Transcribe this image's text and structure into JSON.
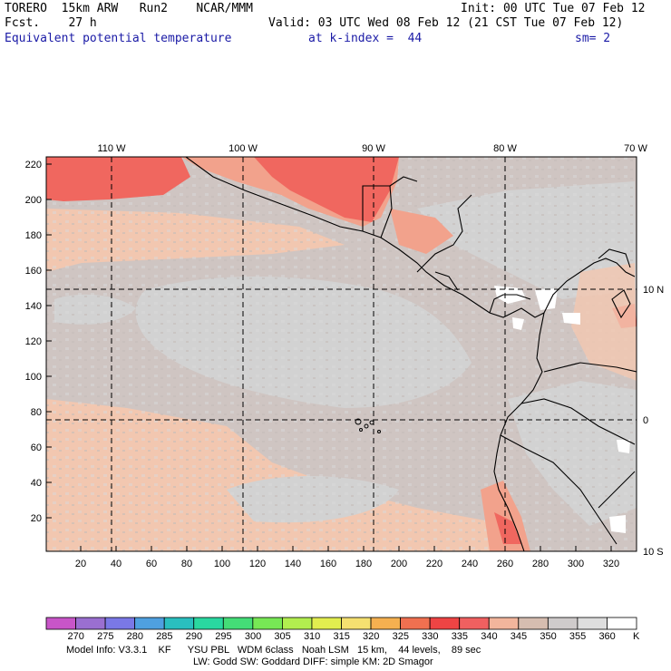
{
  "header": {
    "line1_left": "TORERO  15km ARW   Run2    NCAR/MMM",
    "line1_right": "Init: 00 UTC Tue 07 Feb 12",
    "line2_left": "Fcst.    27 h",
    "line2_right": "Valid: 03 UTC Wed 08 Feb 12 (21 CST Tue 07 Feb 12)",
    "line3_left": "Equivalent potential temperature",
    "line3_mid": "at k-index =  44",
    "line3_right": "sm= 2"
  },
  "map": {
    "lon_labels": [
      "110 W",
      "100 W",
      "90 W",
      "80 W",
      "70 W"
    ],
    "lat_labels": [
      "10 N",
      "0",
      "10 S"
    ],
    "y_ticks": [
      "220",
      "200",
      "180",
      "160",
      "140",
      "120",
      "100",
      "80",
      "60",
      "40",
      "20"
    ],
    "x_ticks": [
      "20",
      "40",
      "60",
      "80",
      "100",
      "120",
      "140",
      "160",
      "180",
      "200",
      "220",
      "240",
      "260",
      "280",
      "300",
      "320"
    ]
  },
  "colorbar": {
    "labels": [
      "270",
      "275",
      "280",
      "285",
      "290",
      "295",
      "300",
      "305",
      "310",
      "315",
      "320",
      "325",
      "330",
      "335",
      "340",
      "345",
      "350",
      "355",
      "360"
    ],
    "unit": "K",
    "colors": [
      "#c855c8",
      "#9a6fd0",
      "#7a78e6",
      "#4fa0e0",
      "#2abfbf",
      "#2ad8a0",
      "#44dd77",
      "#77e855",
      "#b2ee4f",
      "#e2ee4f",
      "#f5e070",
      "#f5b050",
      "#f07050",
      "#ee4444",
      "#f06060",
      "#f2b59c",
      "#d6bdb0",
      "#cfcbcb",
      "#dedede",
      "#ffffff"
    ]
  },
  "footer": {
    "line1": "Model Info: V3.3.1    KF      YSU PBL   WDM 6class   Noah LSM   15 km,    44 levels,    89 sec",
    "line2": "LW: Godd SW: Goddard DIFF: simple KM: 2D Smagor"
  },
  "colors": {
    "background_field": "#cfc5c2",
    "warm_field": "#f2c7b0",
    "gray_field": "#d2d2d2",
    "hot_field": "#f0675f",
    "medium_field": "#f2a28c",
    "header_blue": "#1a1aa6"
  }
}
